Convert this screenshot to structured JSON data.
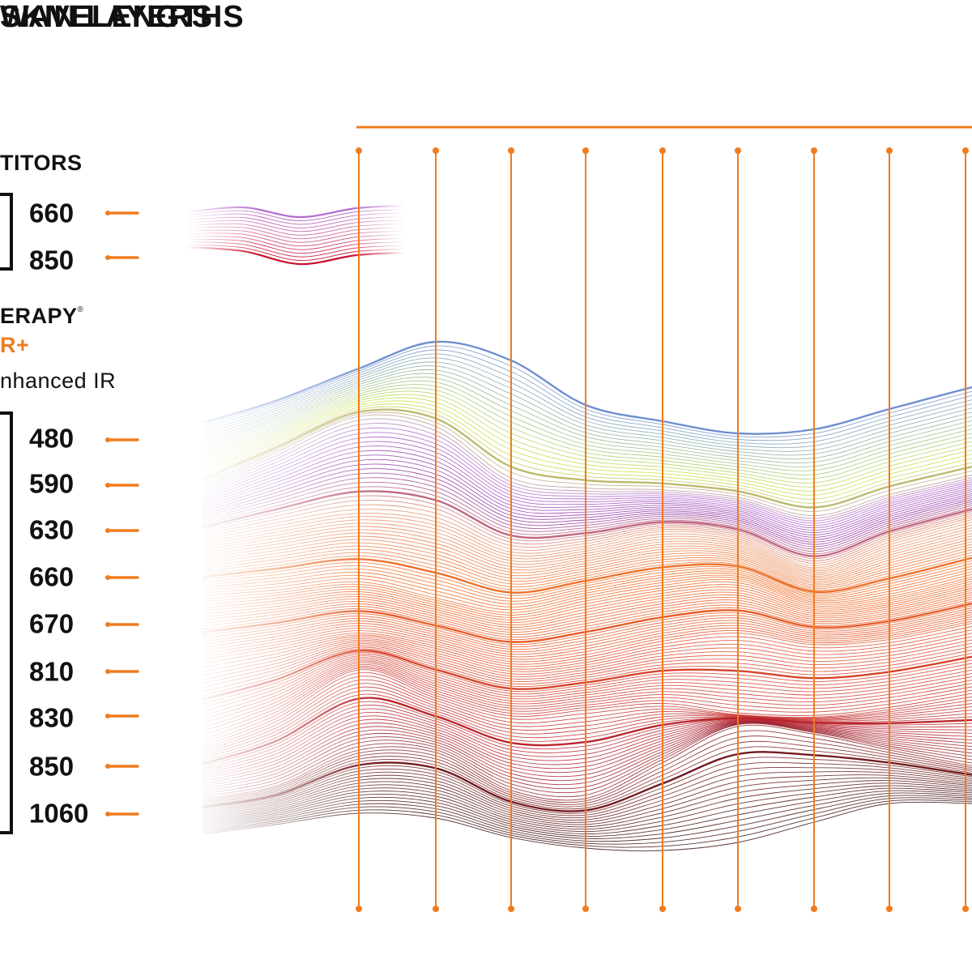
{
  "headings": {
    "wavelengths": "WAVELENGTHS",
    "skin_layers": "SKIN LAYERS"
  },
  "competitors": {
    "title": "TITORS",
    "wavelengths": [
      "660",
      "850"
    ]
  },
  "therapy": {
    "title": "ERAPY",
    "subtitle": "R+",
    "enhanced": "nhanced IR",
    "wavelengths": [
      "480",
      "590",
      "630",
      "660",
      "670",
      "810",
      "830",
      "850",
      "1060"
    ]
  },
  "colors": {
    "accent": "#f07c1e",
    "text": "#111111",
    "competitor_wave_top": "#9b3fb0",
    "competitor_wave_bottom": "#c8102e"
  },
  "icons": {
    "registered_mark": "registered-icon"
  }
}
